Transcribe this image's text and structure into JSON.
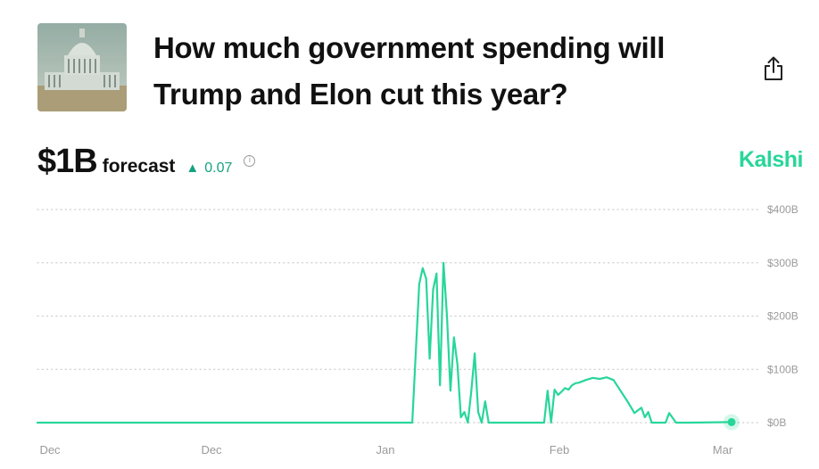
{
  "header": {
    "title": "How much government spending will Trump and Elon cut this year?",
    "thumbnail_icon": "capitol-building-image",
    "share_icon": "share-icon"
  },
  "forecast": {
    "value": "$1B",
    "label": "forecast",
    "delta": "0.07",
    "delta_direction": "up",
    "info_icon": "info-icon"
  },
  "brand": {
    "name": "Kalshi",
    "color": "#28d69a"
  },
  "chart_data": {
    "type": "line",
    "title": "",
    "xlabel": "",
    "ylabel": "",
    "x_tick_labels": [
      "Dec",
      "Dec",
      "Jan",
      "Feb",
      "Mar"
    ],
    "y_tick_labels": [
      "$400B",
      "$300B",
      "$200B",
      "$100B",
      "$0B"
    ],
    "y_ticks": [
      400,
      300,
      200,
      100,
      0
    ],
    "ylim": [
      0,
      400
    ],
    "grid": true,
    "line_color": "#28d69a",
    "series": [
      {
        "name": "",
        "x": [
          0,
          0.54,
          0.55,
          0.555,
          0.56,
          0.565,
          0.57,
          0.575,
          0.58,
          0.585,
          0.59,
          0.595,
          0.6,
          0.605,
          0.61,
          0.615,
          0.62,
          0.625,
          0.63,
          0.635,
          0.64,
          0.645,
          0.65,
          0.655,
          0.66,
          0.665,
          0.67,
          0.675,
          0.68,
          0.685,
          0.69,
          0.695,
          0.7,
          0.705,
          0.71,
          0.715,
          0.72,
          0.73,
          0.735,
          0.74,
          0.745,
          0.75,
          0.755,
          0.76,
          0.765,
          0.77,
          0.775,
          0.78,
          0.79,
          0.8,
          0.81,
          0.82,
          0.83,
          0.84,
          0.85,
          0.86,
          0.87,
          0.875,
          0.88,
          0.885,
          0.89,
          0.895,
          0.9,
          0.905,
          0.91,
          0.92,
          0.93,
          0.94,
          1.0
        ],
        "values": [
          0,
          0,
          260,
          290,
          270,
          120,
          250,
          280,
          70,
          300,
          200,
          60,
          160,
          110,
          10,
          20,
          0,
          60,
          130,
          20,
          0,
          40,
          0,
          0,
          0,
          0,
          0,
          0,
          0,
          0,
          0,
          0,
          0,
          0,
          0,
          0,
          0,
          0,
          60,
          0,
          62,
          52,
          58,
          65,
          62,
          70,
          74,
          75,
          80,
          84,
          82,
          85,
          80,
          60,
          40,
          18,
          28,
          10,
          20,
          0,
          0,
          0,
          0,
          0,
          18,
          0,
          0,
          0,
          1
        ]
      }
    ],
    "marker_at_end": true
  }
}
